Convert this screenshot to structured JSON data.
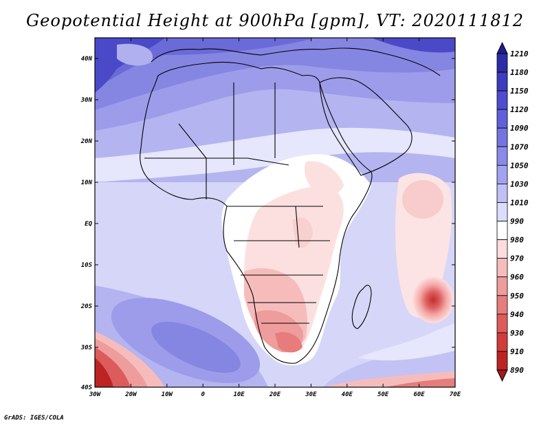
{
  "title": "Geopotential Height at 900hPa [gpm], VT: 2020111812",
  "footer": "GrADS: IGES/COLA",
  "map": {
    "lon_labels": [
      "30W",
      "20W",
      "10W",
      "0",
      "10E",
      "20E",
      "30E",
      "40E",
      "50E",
      "60E",
      "70E"
    ],
    "lat_labels": [
      "40N",
      "30N",
      "20N",
      "10N",
      "EQ",
      "10S",
      "20S",
      "30S",
      "40S"
    ]
  },
  "colorbar": {
    "labels": [
      "1210",
      "1180",
      "1150",
      "1120",
      "1090",
      "1070",
      "1050",
      "1030",
      "1010",
      "990",
      "980",
      "970",
      "960",
      "950",
      "940",
      "930",
      "910",
      "890"
    ],
    "colors": [
      "#1e1e8c",
      "#2c2ca6",
      "#3c3cbe",
      "#4d4dd0",
      "#6060da",
      "#7474e0",
      "#8a8ae8",
      "#a2a2ee",
      "#c0c0f6",
      "#dcdcfc",
      "#ffffff",
      "#fcdcdc",
      "#f6bcbc",
      "#ee9c9c",
      "#e67c7c",
      "#dc5c5c",
      "#d03c3c",
      "#bc2424",
      "#a01818"
    ]
  }
}
